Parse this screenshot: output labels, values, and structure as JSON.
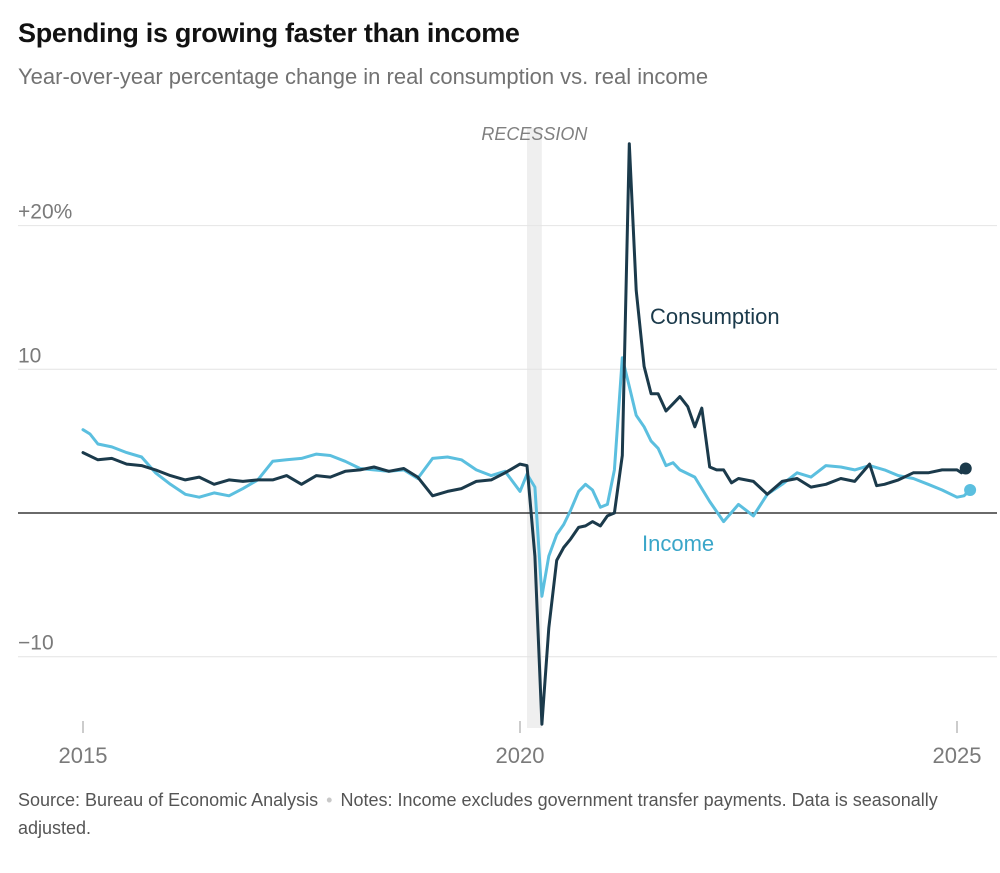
{
  "title": "Spending is growing faster than income",
  "subtitle": "Year-over-year percentage change in real consumption vs. real income",
  "source": {
    "source_text": "Source: Bureau of Economic Analysis",
    "separator": "•",
    "notes_text": "Notes: Income excludes government transfer payments. Data is seasonally adjusted."
  },
  "colors": {
    "consumption": "#1b3a4b",
    "income": "#5bbfdf",
    "recession": "#efefef",
    "grid": "#e4e4e4",
    "zero": "#121212"
  },
  "chart_data": {
    "type": "line",
    "title": "Spending is growing faster than income",
    "subtitle": "Year-over-year percentage change in real consumption vs. real income",
    "xlabel": "",
    "ylabel": "",
    "x_range": [
      2015,
      2025.5
    ],
    "ylim": [
      -15,
      26
    ],
    "y_ticks": [
      {
        "value": 20,
        "label": "+20%"
      },
      {
        "value": 10,
        "label": "10"
      },
      {
        "value": -10,
        "label": "−10"
      }
    ],
    "x_ticks": [
      {
        "value": 2015,
        "label": "2015"
      },
      {
        "value": 2020,
        "label": "2020"
      },
      {
        "value": 2025,
        "label": "2025"
      }
    ],
    "annotations": [
      {
        "type": "band",
        "label": "RECESSION",
        "x_start": 2020.08,
        "x_end": 2020.25
      }
    ],
    "series": [
      {
        "name": "Consumption",
        "label": "Consumption",
        "points": [
          [
            2015.0,
            4.2
          ],
          [
            2015.17,
            3.7
          ],
          [
            2015.33,
            3.8
          ],
          [
            2015.5,
            3.4
          ],
          [
            2015.67,
            3.3
          ],
          [
            2015.83,
            3.0
          ],
          [
            2016.0,
            2.6
          ],
          [
            2016.17,
            2.3
          ],
          [
            2016.33,
            2.5
          ],
          [
            2016.5,
            2.0
          ],
          [
            2016.67,
            2.3
          ],
          [
            2016.83,
            2.2
          ],
          [
            2017.0,
            2.3
          ],
          [
            2017.17,
            2.3
          ],
          [
            2017.33,
            2.6
          ],
          [
            2017.5,
            2.0
          ],
          [
            2017.67,
            2.6
          ],
          [
            2017.83,
            2.5
          ],
          [
            2018.0,
            2.9
          ],
          [
            2018.17,
            3.0
          ],
          [
            2018.33,
            3.2
          ],
          [
            2018.5,
            2.9
          ],
          [
            2018.67,
            3.1
          ],
          [
            2018.83,
            2.5
          ],
          [
            2019.0,
            1.2
          ],
          [
            2019.17,
            1.5
          ],
          [
            2019.33,
            1.7
          ],
          [
            2019.5,
            2.2
          ],
          [
            2019.67,
            2.3
          ],
          [
            2019.83,
            2.8
          ],
          [
            2020.0,
            3.4
          ],
          [
            2020.08,
            3.3
          ],
          [
            2020.17,
            -3.0
          ],
          [
            2020.25,
            -14.7
          ],
          [
            2020.33,
            -8.0
          ],
          [
            2020.42,
            -3.3
          ],
          [
            2020.5,
            -2.4
          ],
          [
            2020.58,
            -1.8
          ],
          [
            2020.67,
            -1.0
          ],
          [
            2020.75,
            -0.9
          ],
          [
            2020.83,
            -0.6
          ],
          [
            2020.92,
            -0.9
          ],
          [
            2021.0,
            -0.2
          ],
          [
            2021.08,
            0.0
          ],
          [
            2021.17,
            4.0
          ],
          [
            2021.25,
            25.7
          ],
          [
            2021.33,
            15.5
          ],
          [
            2021.42,
            10.2
          ],
          [
            2021.5,
            8.3
          ],
          [
            2021.58,
            8.3
          ],
          [
            2021.67,
            7.1
          ],
          [
            2021.75,
            7.6
          ],
          [
            2021.83,
            8.1
          ],
          [
            2021.92,
            7.4
          ],
          [
            2022.0,
            6.0
          ],
          [
            2022.08,
            7.3
          ],
          [
            2022.17,
            3.2
          ],
          [
            2022.25,
            3.0
          ],
          [
            2022.33,
            3.0
          ],
          [
            2022.42,
            2.1
          ],
          [
            2022.5,
            2.4
          ],
          [
            2022.67,
            2.2
          ],
          [
            2022.83,
            1.3
          ],
          [
            2023.0,
            2.2
          ],
          [
            2023.17,
            2.4
          ],
          [
            2023.33,
            1.8
          ],
          [
            2023.5,
            2.0
          ],
          [
            2023.67,
            2.4
          ],
          [
            2023.83,
            2.2
          ],
          [
            2024.0,
            3.4
          ],
          [
            2024.08,
            1.9
          ],
          [
            2024.17,
            2.0
          ],
          [
            2024.33,
            2.3
          ],
          [
            2024.5,
            2.8
          ],
          [
            2024.67,
            2.8
          ],
          [
            2024.83,
            3.0
          ],
          [
            2025.0,
            3.0
          ],
          [
            2025.05,
            2.8
          ],
          [
            2025.1,
            3.1
          ]
        ]
      },
      {
        "name": "Income",
        "label": "Income",
        "points": [
          [
            2015.0,
            5.8
          ],
          [
            2015.08,
            5.5
          ],
          [
            2015.17,
            4.8
          ],
          [
            2015.33,
            4.6
          ],
          [
            2015.5,
            4.2
          ],
          [
            2015.67,
            3.9
          ],
          [
            2015.83,
            2.8
          ],
          [
            2016.0,
            2.0
          ],
          [
            2016.17,
            1.3
          ],
          [
            2016.33,
            1.1
          ],
          [
            2016.5,
            1.4
          ],
          [
            2016.67,
            1.2
          ],
          [
            2016.83,
            1.7
          ],
          [
            2017.0,
            2.3
          ],
          [
            2017.17,
            3.6
          ],
          [
            2017.33,
            3.7
          ],
          [
            2017.5,
            3.8
          ],
          [
            2017.67,
            4.1
          ],
          [
            2017.83,
            4.0
          ],
          [
            2018.0,
            3.6
          ],
          [
            2018.17,
            3.1
          ],
          [
            2018.33,
            3.0
          ],
          [
            2018.5,
            2.9
          ],
          [
            2018.67,
            3.0
          ],
          [
            2018.83,
            2.4
          ],
          [
            2019.0,
            3.8
          ],
          [
            2019.17,
            3.9
          ],
          [
            2019.33,
            3.7
          ],
          [
            2019.5,
            3.0
          ],
          [
            2019.67,
            2.6
          ],
          [
            2019.83,
            2.9
          ],
          [
            2020.0,
            1.5
          ],
          [
            2020.08,
            2.7
          ],
          [
            2020.17,
            1.8
          ],
          [
            2020.25,
            -5.8
          ],
          [
            2020.33,
            -3.0
          ],
          [
            2020.42,
            -1.5
          ],
          [
            2020.5,
            -0.8
          ],
          [
            2020.58,
            0.2
          ],
          [
            2020.67,
            1.5
          ],
          [
            2020.75,
            2.0
          ],
          [
            2020.83,
            1.6
          ],
          [
            2020.92,
            0.4
          ],
          [
            2021.0,
            0.6
          ],
          [
            2021.08,
            3.0
          ],
          [
            2021.17,
            10.8
          ],
          [
            2021.25,
            8.8
          ],
          [
            2021.33,
            6.8
          ],
          [
            2021.42,
            6.0
          ],
          [
            2021.5,
            5.0
          ],
          [
            2021.58,
            4.5
          ],
          [
            2021.67,
            3.3
          ],
          [
            2021.75,
            3.5
          ],
          [
            2021.83,
            3.0
          ],
          [
            2022.0,
            2.5
          ],
          [
            2022.17,
            0.8
          ],
          [
            2022.33,
            -0.6
          ],
          [
            2022.5,
            0.6
          ],
          [
            2022.67,
            -0.2
          ],
          [
            2022.83,
            1.3
          ],
          [
            2023.0,
            2.0
          ],
          [
            2023.17,
            2.8
          ],
          [
            2023.33,
            2.5
          ],
          [
            2023.5,
            3.3
          ],
          [
            2023.67,
            3.2
          ],
          [
            2023.83,
            3.0
          ],
          [
            2024.0,
            3.3
          ],
          [
            2024.17,
            3.0
          ],
          [
            2024.33,
            2.6
          ],
          [
            2024.5,
            2.4
          ],
          [
            2024.67,
            2.0
          ],
          [
            2024.83,
            1.6
          ],
          [
            2025.0,
            1.1
          ],
          [
            2025.08,
            1.2
          ],
          [
            2025.15,
            1.6
          ]
        ]
      }
    ]
  }
}
